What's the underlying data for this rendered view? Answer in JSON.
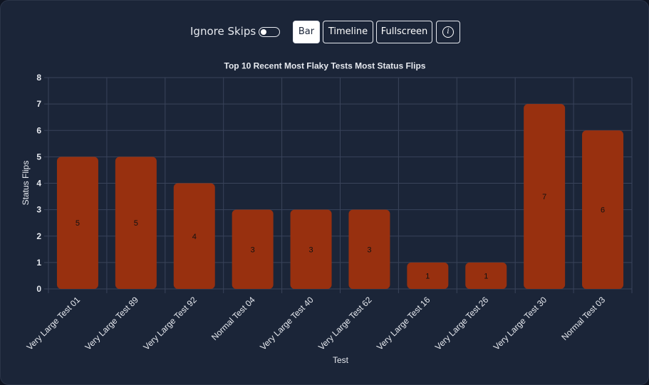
{
  "controls": {
    "ignore_skips_label": "Ignore Skips",
    "ignore_skips_on": false,
    "buttons": {
      "bar": "Bar",
      "timeline": "Timeline",
      "fullscreen": "Fullscreen",
      "info": "i"
    },
    "active_view": "Bar"
  },
  "colors": {
    "bar_fill": "#98300f",
    "grid": "#39435a",
    "axis_text": "#e6e9ef",
    "value_label": "#111111"
  },
  "chart_data": {
    "type": "bar",
    "title": "Top 10 Recent Most Flaky Tests Most Status Flips",
    "xlabel": "Test",
    "ylabel": "Status Flips",
    "ylim": [
      0,
      8
    ],
    "yticks": [
      "0",
      "1",
      "2",
      "3",
      "4",
      "5",
      "6",
      "7",
      "8"
    ],
    "grid": true,
    "categories": [
      "Very Large Test 01",
      "Very Large Test 89",
      "Very Large Test 92",
      "Normal Test 04",
      "Very Large Test 40",
      "Very Large Test 62",
      "Very Large Test 16",
      "Very Large Test 26",
      "Very Large Test 30",
      "Normal Test 03"
    ],
    "values": [
      5,
      5,
      4,
      3,
      3,
      3,
      1,
      1,
      7,
      6
    ]
  }
}
